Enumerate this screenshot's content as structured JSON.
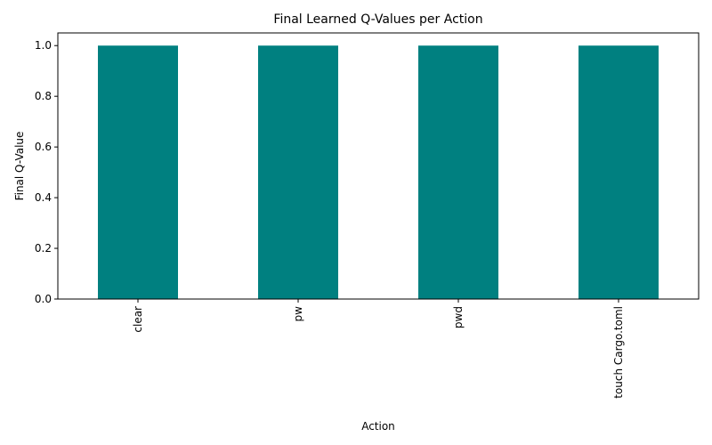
{
  "chart_data": {
    "type": "bar",
    "title": "Final Learned Q-Values per Action",
    "xlabel": "Action",
    "ylabel": "Final Q-Value",
    "categories": [
      "clear",
      "pw",
      "pwd",
      "touch Cargo.toml"
    ],
    "values": [
      1.0,
      1.0,
      1.0,
      1.0
    ],
    "ylim": [
      0,
      1.05
    ],
    "yticks": [
      "0.0",
      "0.2",
      "0.4",
      "0.6",
      "0.8",
      "1.0"
    ],
    "bar_color": "#008080",
    "grid": false,
    "legend": "none"
  }
}
